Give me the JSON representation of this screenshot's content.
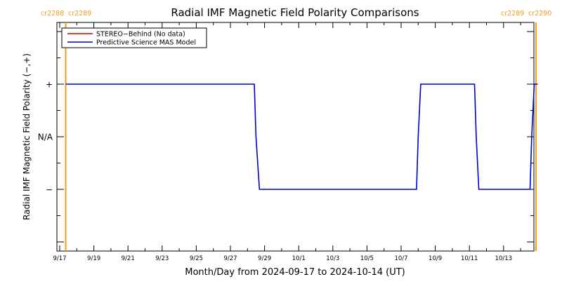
{
  "chart_data": {
    "type": "line",
    "title": "Radial IMF Magnetic Field Polarity Comparisons",
    "xlabel": "Month/Day from 2024-09-17 to 2024-10-14 (UT)",
    "ylabel": "Radial IMF Magnetic Field Polarity (−,+)",
    "x_ticks": [
      "9/17",
      "9/19",
      "9/21",
      "9/23",
      "9/25",
      "9/27",
      "9/29",
      "10/1",
      "10/3",
      "10/5",
      "10/7",
      "10/9",
      "10/11",
      "10/13"
    ],
    "y_ticks": [
      {
        "label": "+",
        "value": 1
      },
      {
        "label": "N/A",
        "value": 0
      },
      {
        "label": "−",
        "value": -1
      }
    ],
    "xlim": [
      0,
      28
    ],
    "ylim": [
      -2,
      2
    ],
    "legend_position": "top-left",
    "legend": [
      {
        "name": "STEREO−Behind (No data)",
        "color": "#c00000"
      },
      {
        "name": "Predictive Science MAS Model",
        "color": "#0000cc"
      }
    ],
    "series": [
      {
        "name": "Predictive Science MAS Model",
        "color": "#0000cc",
        "x": [
          0.35,
          11.4,
          11.5,
          11.7,
          20.9,
          21.0,
          21.15,
          24.3,
          24.4,
          24.55,
          27.55,
          27.65,
          27.8,
          28.0
        ],
        "y": [
          1,
          1,
          0,
          -1,
          -1,
          0,
          1,
          1,
          0,
          -1,
          -1,
          0,
          1,
          1
        ]
      }
    ],
    "carrington_markers": [
      {
        "x": 0.35,
        "color": "#f39c1f",
        "left_label": "cr2288",
        "right_label": "cr2289",
        "position": "top-left"
      },
      {
        "x": 27.9,
        "color": "#f39c1f",
        "left_label": "cr2289",
        "right_label": "cr2290",
        "position": "top-right"
      }
    ]
  }
}
